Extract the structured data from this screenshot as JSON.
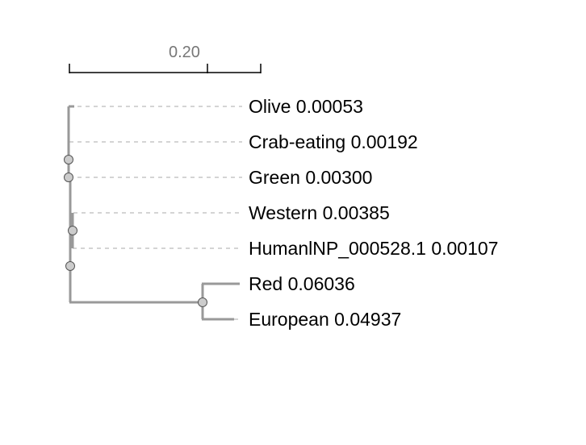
{
  "scale_bar": {
    "label": "0.20"
  },
  "leaves": [
    {
      "name": "Olive",
      "length": "0.00053"
    },
    {
      "name": "Crab-eating",
      "length": "0.00192"
    },
    {
      "name": "Green",
      "length": "0.00300"
    },
    {
      "name": "Western",
      "length": "0.00385"
    },
    {
      "name": "HumanlNP_000528.1",
      "length": "0.00107"
    },
    {
      "name": "Red",
      "length": "0.06036"
    },
    {
      "name": "European",
      "length": "0.04937"
    }
  ],
  "colors": {
    "branch": "#999999",
    "guide": "#bbbbbb",
    "node_fill": "#cccccc",
    "node_stroke": "#555555",
    "scale": "#000000"
  }
}
